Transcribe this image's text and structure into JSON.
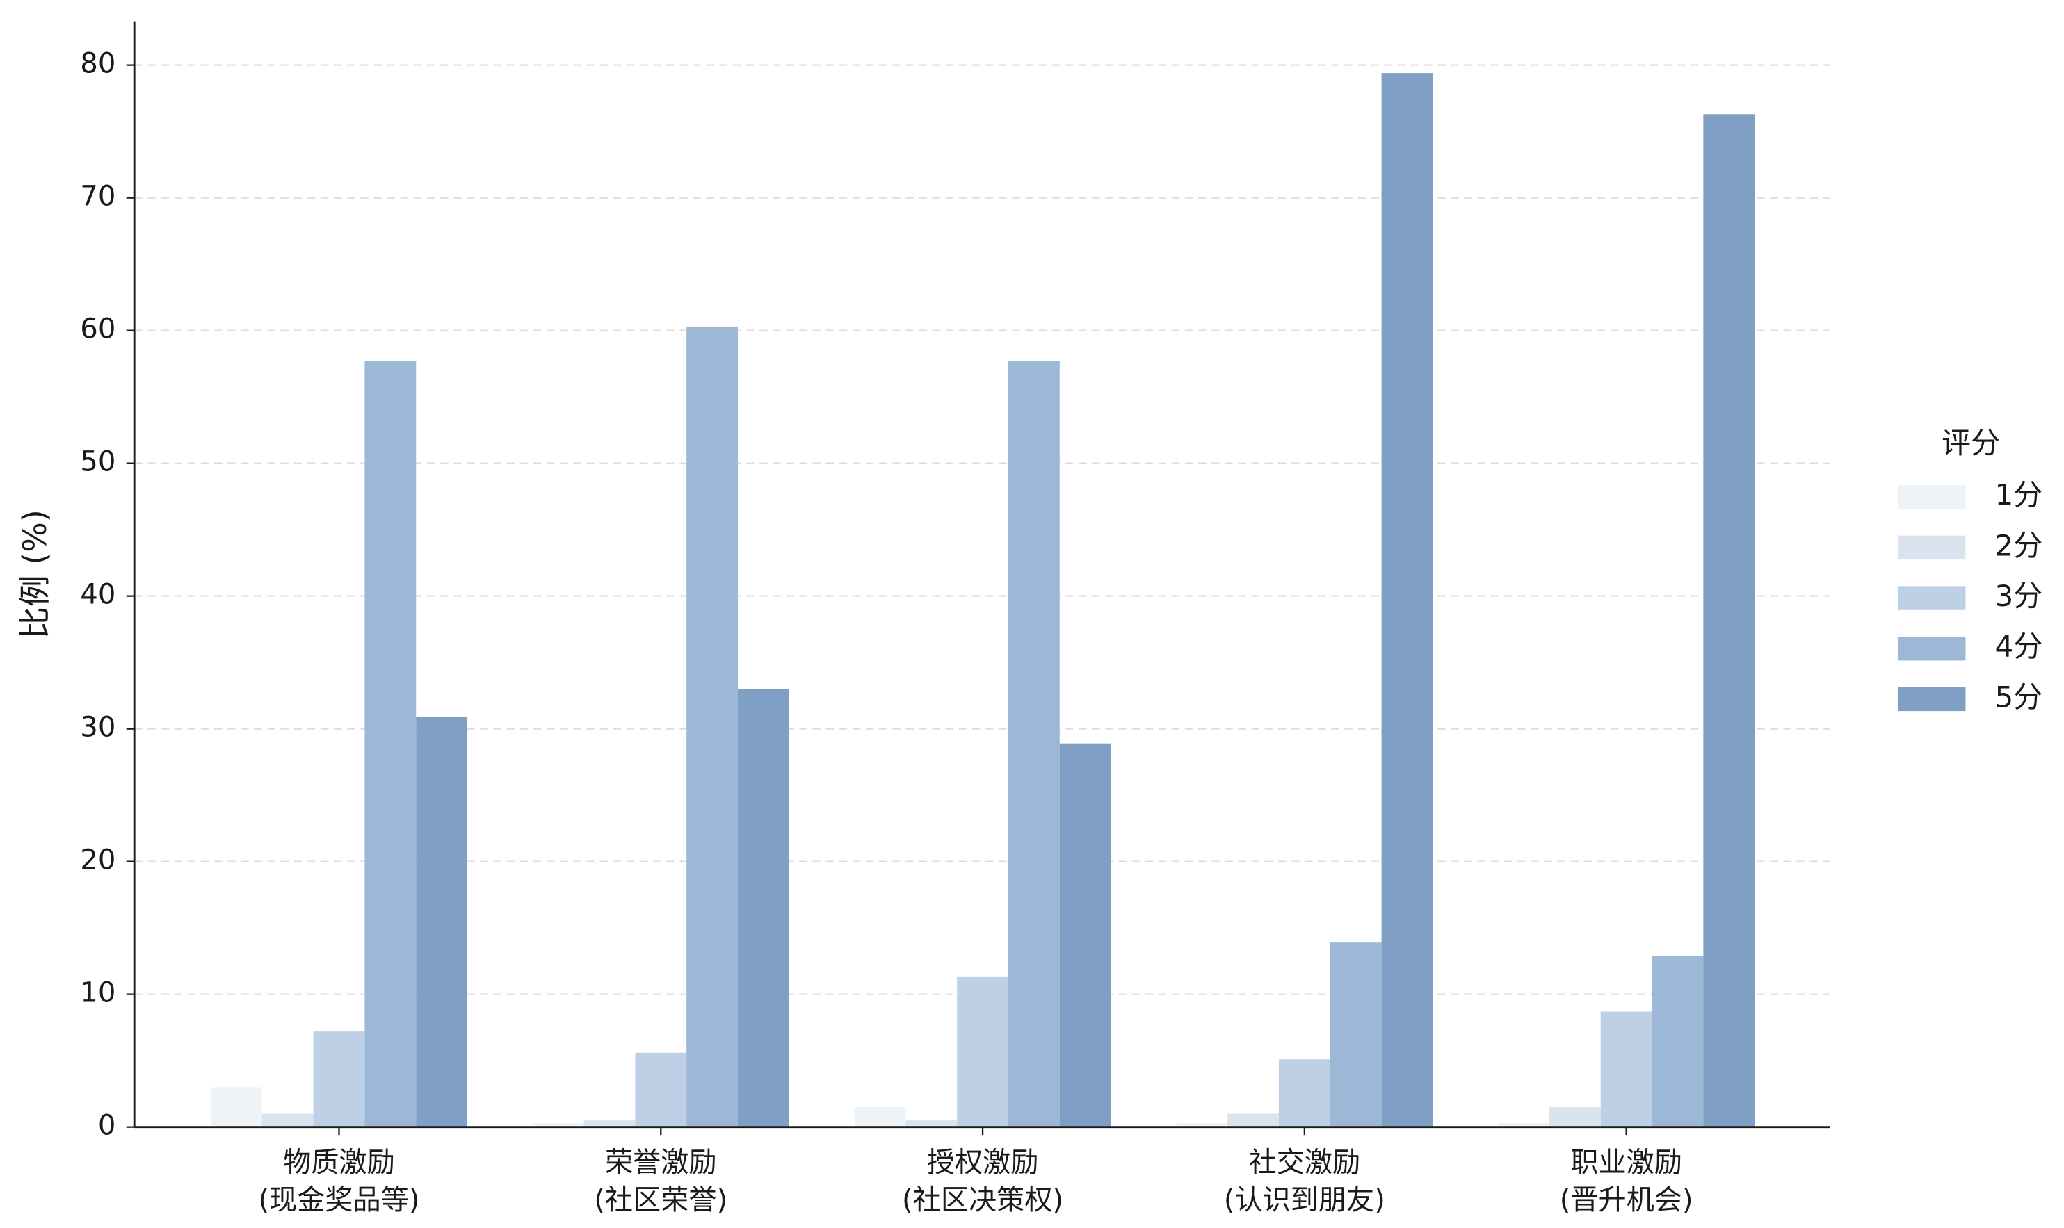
{
  "chart_data": {
    "type": "bar",
    "categories": [
      [
        "物质激励",
        "(现金奖品等)"
      ],
      [
        "荣誉激励",
        "(社区荣誉)"
      ],
      [
        "授权激励",
        "(社区决策权)"
      ],
      [
        "社交激励",
        "(认识到朋友)"
      ],
      [
        "职业激励",
        "(晋升机会)"
      ]
    ],
    "ylabel": "比例 (%)",
    "legend_title": "评分",
    "legend_position": "right",
    "series": [
      {
        "name": "1分",
        "color": "#eef3f8",
        "values": [
          3.0,
          0.3,
          1.5,
          0.3,
          0.3
        ]
      },
      {
        "name": "2分",
        "color": "#d9e4ef",
        "values": [
          1.0,
          0.5,
          0.5,
          1.0,
          1.5
        ]
      },
      {
        "name": "3分",
        "color": "#bdd0e5",
        "values": [
          7.2,
          5.6,
          11.3,
          5.1,
          8.7
        ]
      },
      {
        "name": "4分",
        "color": "#9db8d6",
        "values": [
          57.7,
          60.3,
          57.7,
          13.9,
          12.9
        ]
      },
      {
        "name": "5分",
        "color": "#7fa0c4",
        "values": [
          30.9,
          33.0,
          28.9,
          79.4,
          76.3
        ]
      }
    ],
    "ylim": [
      0,
      83.3
    ],
    "yticks": [
      0,
      10,
      20,
      30,
      40,
      50,
      60,
      70,
      80
    ],
    "grid": true
  }
}
